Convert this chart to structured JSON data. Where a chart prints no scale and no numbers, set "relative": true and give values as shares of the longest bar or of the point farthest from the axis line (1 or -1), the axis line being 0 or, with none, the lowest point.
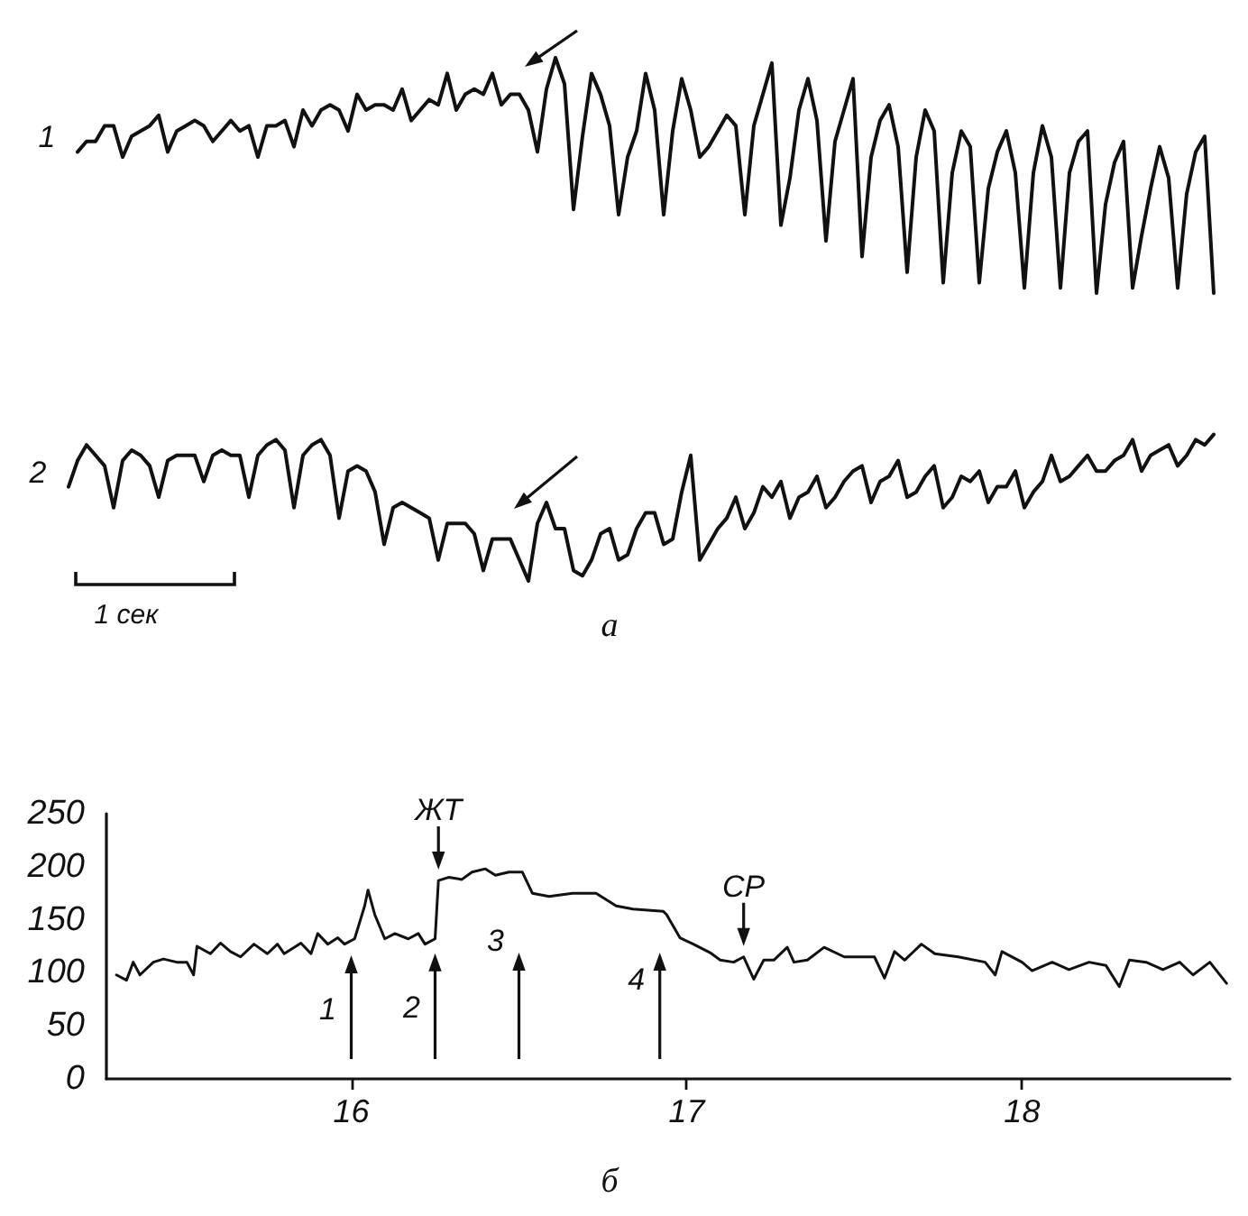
{
  "chart_data": [
    {
      "type": "line",
      "relative": true,
      "categories": [
        null,
        null,
        null,
        null,
        null,
        null,
        null,
        null,
        null,
        null,
        null,
        null,
        null,
        null,
        null,
        null,
        null,
        null,
        null,
        null,
        null,
        null,
        null,
        null,
        null,
        null,
        null,
        null,
        null,
        null,
        null,
        null,
        null,
        null,
        null,
        null,
        null,
        null,
        null,
        null,
        null,
        null,
        null,
        null,
        null,
        null,
        null,
        null,
        null,
        null,
        null,
        null,
        null,
        null,
        null,
        null,
        null,
        null,
        null,
        null,
        null,
        null,
        null,
        null,
        null,
        null,
        null,
        null,
        null,
        null,
        null,
        null,
        null,
        null,
        null,
        null,
        null,
        null,
        null,
        null,
        null,
        null,
        null,
        null,
        null,
        null,
        null,
        null,
        null,
        null,
        null,
        null,
        null,
        null,
        null,
        null,
        null,
        null,
        null,
        null,
        null,
        null,
        null,
        null,
        null,
        null,
        null,
        null,
        null,
        null,
        null,
        null,
        null,
        null,
        null,
        null,
        null,
        null,
        null,
        null,
        null,
        null,
        null,
        null,
        null,
        null,
        null,
        null
      ],
      "series": [
        {
          "name": "1",
          "color": "#111111",
          "values": [
            null,
            0.82,
            0.84,
            0.84,
            0.87,
            0.87,
            0.81,
            0.85,
            0.86,
            0.87,
            0.89,
            0.82,
            0.86,
            0.87,
            0.88,
            0.87,
            0.84,
            0.86,
            0.88,
            0.86,
            0.87,
            0.81,
            0.87,
            0.87,
            0.88,
            0.83,
            0.9,
            0.87,
            0.9,
            0.91,
            0.9,
            0.86,
            0.93,
            0.9,
            0.91,
            0.91,
            0.9,
            0.94,
            0.88,
            0.9,
            0.92,
            0.91,
            0.97,
            0.9,
            0.93,
            0.94,
            0.93,
            0.97,
            0.91,
            0.93,
            0.93,
            0.9,
            0.82,
            0.94,
            1,
            0.95,
            0.71,
            0.85,
            0.97,
            0.93,
            0.87,
            0.7,
            0.81,
            0.86,
            0.97,
            0.9,
            0.7,
            0.86,
            0.96,
            0.9,
            0.81,
            0.83,
            0.86,
            0.89,
            0.87,
            0.7,
            0.87,
            0.93,
            0.99,
            0.68,
            0.77,
            0.9,
            0.96,
            0.88,
            0.65,
            0.84,
            0.9,
            0.96,
            0.62,
            0.81,
            0.88,
            0.91,
            0.83,
            0.59,
            0.81,
            0.9,
            0.86,
            0.57,
            0.78,
            0.86,
            0.83,
            0.57,
            0.75,
            0.82,
            0.86,
            0.78,
            0.56,
            0.78,
            0.87,
            0.81,
            0.56,
            0.78,
            0.84,
            0.86,
            0.55,
            0.72,
            0.8,
            0.84,
            0.56,
            0.66,
            0.75,
            0.83,
            0.77,
            0.56,
            0.74,
            0.82,
            0.85,
            0.55
          ]
        },
        {
          "name": "2",
          "color": "#111111",
          "values": [
            0.18,
            0.23,
            0.26,
            0.24,
            0.22,
            0.14,
            0.23,
            0.25,
            0.24,
            0.22,
            0.16,
            0.23,
            0.24,
            0.24,
            0.24,
            0.19,
            0.24,
            0.25,
            0.24,
            0.24,
            0.16,
            0.24,
            0.26,
            0.27,
            0.25,
            0.14,
            0.24,
            0.26,
            0.27,
            0.24,
            0.12,
            0.21,
            0.22,
            0.21,
            0.17,
            0.07,
            0.14,
            0.15,
            0.14,
            0.13,
            0.12,
            0.04,
            0.11,
            0.11,
            0.11,
            0.09,
            0.02,
            0.08,
            0.08,
            0.08,
            0.04,
            0,
            0.11,
            0.15,
            0.1,
            0.1,
            0.02,
            0.01,
            0.04,
            0.09,
            0.1,
            0.04,
            0.05,
            0.1,
            0.13,
            0.13,
            0.07,
            0.08,
            0.17,
            0.24,
            0.04,
            0.07,
            0.1,
            0.12,
            0.16,
            0.1,
            0.13,
            0.18,
            0.16,
            0.19,
            0.12,
            0.16,
            0.17,
            0.2,
            0.14,
            0.16,
            0.19,
            0.21,
            0.22,
            0.15,
            0.19,
            0.2,
            0.23,
            0.16,
            0.17,
            0.2,
            0.22,
            0.14,
            0.16,
            0.2,
            0.19,
            0.21,
            0.15,
            0.18,
            0.18,
            0.21,
            0.14,
            0.17,
            0.19,
            0.24,
            0.19,
            0.2,
            0.22,
            0.24,
            0.21,
            0.21,
            0.23,
            0.24,
            0.27,
            0.21,
            0.24,
            0.25,
            0.26,
            0.22,
            0.24,
            0.27,
            0.26,
            0.28
          ]
        }
      ],
      "annotations": [
        "1 сек",
        "а"
      ]
    },
    {
      "type": "line",
      "color": "#111111",
      "x": [
        15.3,
        15.33,
        15.35,
        15.37,
        15.41,
        15.44,
        15.48,
        15.51,
        15.53,
        15.54,
        15.58,
        15.61,
        15.64,
        15.67,
        15.71,
        15.75,
        15.78,
        15.8,
        15.85,
        15.88,
        15.9,
        15.93,
        15.96,
        15.98,
        16.01,
        16.04,
        16.05,
        16.07,
        16.1,
        16.13,
        16.17,
        16.2,
        16.22,
        16.25,
        16.26,
        16.29,
        16.33,
        16.36,
        16.4,
        16.43,
        16.47,
        16.51,
        16.54,
        16.59,
        16.66,
        16.73,
        16.79,
        16.84,
        16.93,
        16.94,
        16.98,
        17.02,
        17.07,
        17.1,
        17.14,
        17.17,
        17.2,
        17.23,
        17.26,
        17.3,
        17.32,
        17.36,
        17.41,
        17.47,
        17.56,
        17.59,
        17.62,
        17.65,
        17.7,
        17.74,
        17.81,
        17.89,
        17.92,
        17.94,
        18.0,
        18.03,
        18.09,
        18.14,
        18.2,
        18.25,
        18.29,
        18.32,
        18.37,
        18.42,
        18.47,
        18.51,
        18.56,
        18.61
      ],
      "values": [
        98,
        93,
        110,
        98,
        110,
        113,
        110,
        110,
        98,
        125,
        118,
        128,
        120,
        115,
        127,
        118,
        127,
        118,
        128,
        118,
        137,
        127,
        133,
        127,
        132,
        163,
        178,
        155,
        132,
        137,
        132,
        137,
        127,
        132,
        187,
        190,
        188,
        195,
        198,
        192,
        195,
        195,
        175,
        172,
        175,
        175,
        163,
        160,
        158,
        155,
        133,
        127,
        119,
        112,
        110,
        115,
        94,
        112,
        112,
        124,
        110,
        112,
        124,
        115,
        115,
        95,
        120,
        112,
        127,
        118,
        115,
        110,
        98,
        120,
        110,
        102,
        110,
        103,
        110,
        107,
        87,
        112,
        110,
        103,
        110,
        98,
        110,
        90
      ],
      "xlim": [
        15.27,
        18.62
      ],
      "xticks": [
        16,
        17,
        18
      ],
      "ylim": [
        0,
        250
      ],
      "yticks": [
        0,
        50,
        100,
        150,
        200,
        250
      ],
      "annotations": [
        {
          "text": "ЖТ",
          "x": 16.26,
          "y": 187
        },
        {
          "text": "СР",
          "x": 17.17,
          "y": 115
        },
        {
          "text": "1",
          "x": 16.0,
          "y": 130
        },
        {
          "text": "2",
          "x": 16.25,
          "y": 132
        },
        {
          "text": "3",
          "x": 16.5,
          "y": 195
        },
        {
          "text": "4",
          "x": 16.92,
          "y": 158
        },
        "б"
      ]
    }
  ]
}
